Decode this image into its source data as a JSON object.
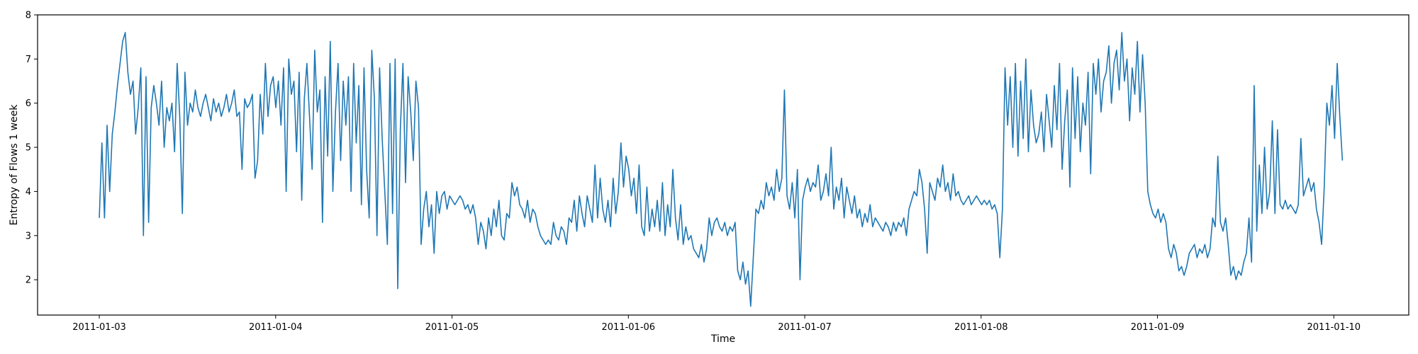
{
  "chart_data": {
    "type": "line",
    "title": "",
    "xlabel": "Time",
    "ylabel": "Entropy of Flows 1 week",
    "x_start": "2011-01-03",
    "x_end": "2011-01-10",
    "xlim": [
      "2011-01-02 15:36",
      "2011-01-10 10:12"
    ],
    "ylim": [
      1.2,
      8.0
    ],
    "xticks": [
      "2011-01-03",
      "2011-01-04",
      "2011-01-05",
      "2011-01-06",
      "2011-01-07",
      "2011-01-08",
      "2011-01-09",
      "2011-01-10"
    ],
    "yticks": [
      2,
      3,
      4,
      5,
      6,
      7,
      8
    ],
    "grid": false,
    "legend": "none",
    "series": [
      {
        "color": "#1f77b4",
        "values": [
          3.4,
          5.1,
          3.4,
          5.5,
          4.0,
          5.3,
          5.8,
          6.4,
          6.9,
          7.4,
          7.6,
          6.7,
          6.2,
          6.5,
          5.3,
          5.9,
          6.8,
          3.0,
          6.6,
          3.3,
          5.9,
          6.4,
          6.0,
          5.5,
          6.5,
          5.0,
          5.9,
          5.6,
          6.0,
          4.9,
          6.9,
          5.7,
          3.5,
          6.7,
          5.5,
          6.0,
          5.8,
          6.3,
          5.9,
          5.7,
          6.0,
          6.2,
          5.9,
          5.6,
          6.1,
          5.8,
          6.0,
          5.7,
          5.9,
          6.2,
          5.8,
          6.0,
          6.3,
          5.7,
          5.8,
          4.5,
          6.1,
          5.9,
          6.0,
          6.2,
          4.3,
          4.7,
          6.2,
          5.3,
          6.9,
          5.7,
          6.4,
          6.6,
          5.9,
          6.5,
          5.5,
          6.8,
          4.0,
          7.0,
          6.2,
          6.5,
          4.9,
          6.7,
          3.8,
          6.1,
          6.9,
          5.7,
          4.5,
          7.2,
          5.8,
          6.3,
          3.3,
          6.6,
          4.8,
          7.4,
          4.0,
          5.8,
          6.9,
          4.7,
          6.5,
          5.5,
          6.6,
          4.0,
          6.9,
          5.1,
          6.4,
          3.7,
          6.8,
          4.5,
          3.4,
          7.2,
          6.1,
          3.0,
          6.8,
          5.2,
          4.0,
          2.8,
          6.9,
          3.5,
          7.0,
          1.8,
          5.4,
          6.9,
          4.2,
          6.6,
          5.8,
          4.7,
          6.5,
          5.9,
          2.8,
          3.6,
          4.0,
          3.2,
          3.7,
          2.6,
          4.0,
          3.5,
          3.9,
          4.0,
          3.6,
          3.9,
          3.8,
          3.7,
          3.8,
          3.9,
          3.8,
          3.6,
          3.7,
          3.5,
          3.7,
          3.4,
          2.8,
          3.3,
          3.1,
          2.7,
          3.4,
          3.0,
          3.6,
          3.2,
          3.8,
          3.0,
          2.9,
          3.5,
          3.4,
          4.2,
          3.9,
          4.1,
          3.7,
          3.6,
          3.4,
          3.8,
          3.3,
          3.6,
          3.5,
          3.2,
          3.0,
          2.9,
          2.8,
          2.9,
          2.8,
          3.3,
          3.0,
          2.9,
          3.2,
          3.1,
          2.8,
          3.4,
          3.3,
          3.8,
          3.1,
          3.9,
          3.5,
          3.2,
          3.9,
          3.6,
          3.3,
          4.6,
          3.4,
          4.3,
          3.6,
          3.3,
          3.8,
          3.2,
          4.3,
          3.5,
          4.0,
          5.1,
          4.1,
          4.8,
          4.5,
          3.9,
          4.3,
          3.5,
          4.6,
          3.2,
          3.0,
          4.1,
          3.1,
          3.6,
          3.2,
          3.8,
          3.1,
          4.2,
          3.0,
          3.7,
          3.2,
          4.5,
          3.4,
          2.9,
          3.7,
          2.8,
          3.2,
          2.9,
          3.0,
          2.7,
          2.6,
          2.5,
          2.8,
          2.4,
          2.7,
          3.4,
          3.0,
          3.3,
          3.4,
          3.2,
          3.1,
          3.3,
          3.0,
          3.2,
          3.1,
          3.3,
          2.2,
          2.0,
          2.4,
          1.9,
          2.2,
          1.4,
          2.5,
          3.6,
          3.5,
          3.8,
          3.6,
          4.2,
          3.9,
          4.1,
          3.8,
          4.5,
          4.0,
          4.3,
          6.3,
          3.9,
          3.6,
          4.2,
          3.4,
          4.5,
          2.0,
          3.8,
          4.1,
          4.3,
          4.0,
          4.2,
          4.1,
          4.6,
          3.8,
          4.0,
          4.4,
          3.9,
          5.0,
          3.6,
          4.1,
          3.8,
          4.3,
          3.4,
          4.1,
          3.8,
          3.5,
          3.9,
          3.4,
          3.6,
          3.2,
          3.5,
          3.3,
          3.7,
          3.2,
          3.4,
          3.3,
          3.2,
          3.1,
          3.3,
          3.2,
          3.0,
          3.3,
          3.1,
          3.3,
          3.2,
          3.4,
          3.0,
          3.6,
          3.8,
          4.0,
          3.9,
          4.5,
          4.2,
          3.6,
          2.6,
          4.2,
          4.0,
          3.8,
          4.3,
          4.1,
          4.6,
          4.0,
          4.2,
          3.8,
          4.4,
          3.9,
          4.0,
          3.8,
          3.7,
          3.8,
          3.9,
          3.7,
          3.8,
          3.9,
          3.8,
          3.7,
          3.8,
          3.7,
          3.8,
          3.6,
          3.7,
          3.5,
          2.5,
          3.6,
          6.8,
          5.5,
          6.6,
          5.0,
          6.9,
          4.8,
          6.5,
          5.2,
          7.0,
          4.9,
          6.3,
          5.5,
          5.1,
          5.3,
          5.8,
          4.9,
          6.2,
          5.6,
          5.0,
          6.4,
          5.4,
          6.9,
          4.5,
          5.6,
          6.3,
          4.1,
          6.8,
          5.2,
          6.6,
          4.9,
          6.0,
          5.5,
          6.7,
          4.4,
          6.9,
          6.2,
          7.0,
          5.8,
          6.5,
          6.7,
          7.3,
          6.0,
          6.9,
          7.2,
          6.3,
          7.6,
          6.5,
          7.0,
          5.6,
          6.8,
          6.2,
          7.4,
          5.8,
          7.1,
          6.0,
          4.0,
          3.7,
          3.5,
          3.4,
          3.6,
          3.3,
          3.5,
          3.3,
          2.7,
          2.5,
          2.8,
          2.6,
          2.2,
          2.3,
          2.1,
          2.3,
          2.6,
          2.7,
          2.8,
          2.5,
          2.7,
          2.6,
          2.8,
          2.5,
          2.7,
          3.4,
          3.2,
          4.8,
          3.3,
          3.1,
          3.4,
          2.8,
          2.1,
          2.3,
          2.0,
          2.2,
          2.1,
          2.4,
          2.6,
          3.4,
          2.4,
          6.4,
          3.1,
          4.6,
          3.5,
          5.0,
          3.6,
          4.0,
          5.6,
          3.5,
          5.4,
          3.7,
          3.6,
          3.8,
          3.6,
          3.7,
          3.6,
          3.5,
          3.7,
          5.2,
          3.9,
          4.1,
          4.3,
          4.0,
          4.2,
          3.6,
          3.3,
          2.8,
          4.1,
          6.0,
          5.5,
          6.4,
          5.2,
          6.9,
          5.7,
          4.7
        ]
      }
    ]
  }
}
